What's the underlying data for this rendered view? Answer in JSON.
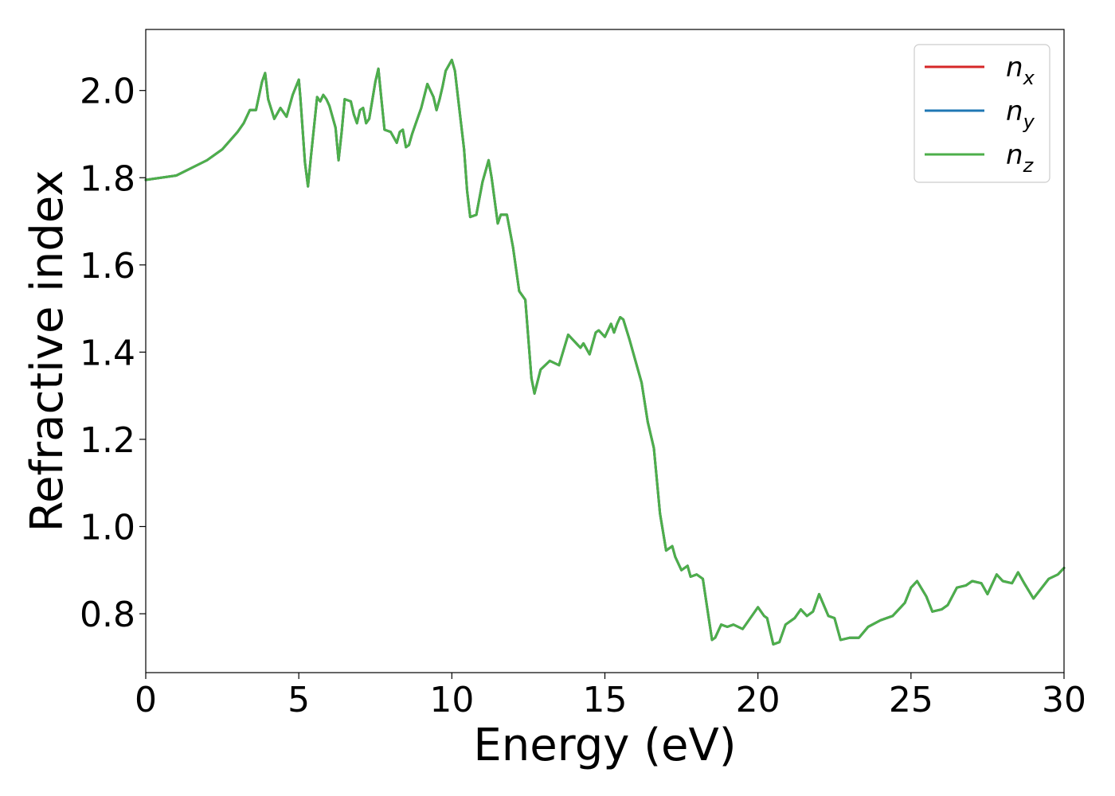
{
  "chart_data": {
    "type": "line",
    "title": "",
    "xlabel": "Energy (eV)",
    "ylabel": "Refractive index",
    "xlim": [
      0,
      30
    ],
    "ylim": [
      0.665,
      2.14
    ],
    "xticks": [
      {
        "value": 0,
        "label": "0"
      },
      {
        "value": 5,
        "label": "5"
      },
      {
        "value": 10,
        "label": "10"
      },
      {
        "value": 15,
        "label": "15"
      },
      {
        "value": 20,
        "label": "20"
      },
      {
        "value": 25,
        "label": "25"
      },
      {
        "value": 30,
        "label": "30"
      }
    ],
    "yticks": [
      {
        "value": 0.8,
        "label": "0.8"
      },
      {
        "value": 1.0,
        "label": "1.0"
      },
      {
        "value": 1.2,
        "label": "1.2"
      },
      {
        "value": 1.4,
        "label": "1.4"
      },
      {
        "value": 1.6,
        "label": "1.6"
      },
      {
        "value": 1.8,
        "label": "1.8"
      },
      {
        "value": 2.0,
        "label": "2.0"
      }
    ],
    "grid": false,
    "legend_position": "top-right",
    "x": [
      0,
      1,
      2,
      2.5,
      3,
      3.2,
      3.4,
      3.6,
      3.8,
      3.9,
      4.0,
      4.2,
      4.4,
      4.6,
      4.8,
      5.0,
      5.05,
      5.2,
      5.3,
      5.4,
      5.6,
      5.7,
      5.8,
      5.9,
      6.0,
      6.2,
      6.3,
      6.4,
      6.5,
      6.7,
      6.8,
      6.9,
      7.0,
      7.1,
      7.2,
      7.3,
      7.5,
      7.6,
      7.7,
      7.8,
      8.0,
      8.2,
      8.3,
      8.4,
      8.5,
      8.6,
      8.7,
      8.8,
      9.0,
      9.2,
      9.4,
      9.5,
      9.6,
      9.7,
      9.8,
      10.0,
      10.1,
      10.2,
      10.4,
      10.5,
      10.6,
      10.8,
      11.0,
      11.2,
      11.3,
      11.5,
      11.6,
      11.8,
      12.0,
      12.2,
      12.4,
      12.6,
      12.7,
      12.9,
      13.2,
      13.5,
      13.8,
      14.0,
      14.2,
      14.3,
      14.5,
      14.7,
      14.8,
      15.0,
      15.2,
      15.3,
      15.4,
      15.5,
      15.6,
      15.8,
      16.0,
      16.2,
      16.4,
      16.6,
      16.8,
      17.0,
      17.2,
      17.3,
      17.5,
      17.7,
      17.8,
      18.0,
      18.2,
      18.5,
      18.6,
      18.8,
      19.0,
      19.2,
      19.5,
      19.8,
      20.0,
      20.2,
      20.3,
      20.5,
      20.7,
      20.9,
      21.2,
      21.4,
      21.6,
      21.8,
      22.0,
      22.3,
      22.5,
      22.7,
      23.0,
      23.3,
      23.6,
      24.0,
      24.4,
      24.8,
      25.0,
      25.2,
      25.5,
      25.7,
      26.0,
      26.2,
      26.5,
      26.8,
      27.0,
      27.3,
      27.5,
      27.8,
      28.0,
      28.3,
      28.5,
      28.7,
      29.0,
      29.5,
      29.8,
      30.0
    ],
    "series": [
      {
        "name": "n_x",
        "label_main": "n",
        "label_sub": "x",
        "color": "#d62728",
        "values": [
          1.795,
          1.805,
          1.84,
          1.865,
          1.905,
          1.925,
          1.955,
          1.955,
          2.02,
          2.04,
          1.98,
          1.935,
          1.96,
          1.94,
          1.99,
          2.025,
          1.985,
          1.835,
          1.78,
          1.85,
          1.985,
          1.975,
          1.99,
          1.98,
          1.965,
          1.915,
          1.84,
          1.905,
          1.98,
          1.975,
          1.945,
          1.925,
          1.955,
          1.96,
          1.925,
          1.935,
          2.02,
          2.05,
          1.98,
          1.91,
          1.905,
          1.88,
          1.905,
          1.91,
          1.87,
          1.875,
          1.9,
          1.92,
          1.96,
          2.015,
          1.985,
          1.955,
          1.98,
          2.01,
          2.045,
          2.07,
          2.045,
          1.985,
          1.865,
          1.77,
          1.71,
          1.715,
          1.79,
          1.84,
          1.8,
          1.695,
          1.715,
          1.715,
          1.64,
          1.54,
          1.52,
          1.34,
          1.305,
          1.36,
          1.38,
          1.37,
          1.44,
          1.425,
          1.41,
          1.42,
          1.395,
          1.445,
          1.45,
          1.435,
          1.465,
          1.445,
          1.465,
          1.48,
          1.475,
          1.43,
          1.38,
          1.33,
          1.24,
          1.18,
          1.03,
          0.945,
          0.955,
          0.93,
          0.9,
          0.91,
          0.885,
          0.89,
          0.88,
          0.74,
          0.745,
          0.775,
          0.77,
          0.775,
          0.765,
          0.795,
          0.815,
          0.795,
          0.79,
          0.73,
          0.735,
          0.775,
          0.79,
          0.81,
          0.795,
          0.805,
          0.845,
          0.795,
          0.79,
          0.74,
          0.745,
          0.745,
          0.77,
          0.785,
          0.795,
          0.825,
          0.86,
          0.875,
          0.84,
          0.805,
          0.81,
          0.82,
          0.86,
          0.865,
          0.875,
          0.87,
          0.845,
          0.89,
          0.875,
          0.87,
          0.895,
          0.87,
          0.835,
          0.88,
          0.89,
          0.905
        ]
      },
      {
        "name": "n_y",
        "label_main": "n",
        "label_sub": "y",
        "color": "#1f77b4",
        "values": [
          1.795,
          1.805,
          1.84,
          1.865,
          1.905,
          1.925,
          1.955,
          1.955,
          2.02,
          2.04,
          1.98,
          1.935,
          1.96,
          1.94,
          1.99,
          2.025,
          1.985,
          1.835,
          1.78,
          1.85,
          1.985,
          1.975,
          1.99,
          1.98,
          1.965,
          1.915,
          1.84,
          1.905,
          1.98,
          1.975,
          1.945,
          1.925,
          1.955,
          1.96,
          1.925,
          1.935,
          2.02,
          2.05,
          1.98,
          1.91,
          1.905,
          1.88,
          1.905,
          1.91,
          1.87,
          1.875,
          1.9,
          1.92,
          1.96,
          2.015,
          1.985,
          1.955,
          1.98,
          2.01,
          2.045,
          2.07,
          2.045,
          1.985,
          1.865,
          1.77,
          1.71,
          1.715,
          1.79,
          1.84,
          1.8,
          1.695,
          1.715,
          1.715,
          1.64,
          1.54,
          1.52,
          1.34,
          1.305,
          1.36,
          1.38,
          1.37,
          1.44,
          1.425,
          1.41,
          1.42,
          1.395,
          1.445,
          1.45,
          1.435,
          1.465,
          1.445,
          1.465,
          1.48,
          1.475,
          1.43,
          1.38,
          1.33,
          1.24,
          1.18,
          1.03,
          0.945,
          0.955,
          0.93,
          0.9,
          0.91,
          0.885,
          0.89,
          0.88,
          0.74,
          0.745,
          0.775,
          0.77,
          0.775,
          0.765,
          0.795,
          0.815,
          0.795,
          0.79,
          0.73,
          0.735,
          0.775,
          0.79,
          0.81,
          0.795,
          0.805,
          0.845,
          0.795,
          0.79,
          0.74,
          0.745,
          0.745,
          0.77,
          0.785,
          0.795,
          0.825,
          0.86,
          0.875,
          0.84,
          0.805,
          0.81,
          0.82,
          0.86,
          0.865,
          0.875,
          0.87,
          0.845,
          0.89,
          0.875,
          0.87,
          0.895,
          0.87,
          0.835,
          0.88,
          0.89,
          0.905
        ]
      },
      {
        "name": "n_z",
        "label_main": "n",
        "label_sub": "z",
        "color": "#4daf4a",
        "values": [
          1.795,
          1.805,
          1.84,
          1.865,
          1.905,
          1.925,
          1.955,
          1.955,
          2.02,
          2.04,
          1.98,
          1.935,
          1.96,
          1.94,
          1.99,
          2.025,
          1.985,
          1.835,
          1.78,
          1.85,
          1.985,
          1.975,
          1.99,
          1.98,
          1.965,
          1.915,
          1.84,
          1.905,
          1.98,
          1.975,
          1.945,
          1.925,
          1.955,
          1.96,
          1.925,
          1.935,
          2.02,
          2.05,
          1.98,
          1.91,
          1.905,
          1.88,
          1.905,
          1.91,
          1.87,
          1.875,
          1.9,
          1.92,
          1.96,
          2.015,
          1.985,
          1.955,
          1.98,
          2.01,
          2.045,
          2.07,
          2.045,
          1.985,
          1.865,
          1.77,
          1.71,
          1.715,
          1.79,
          1.84,
          1.8,
          1.695,
          1.715,
          1.715,
          1.64,
          1.54,
          1.52,
          1.34,
          1.305,
          1.36,
          1.38,
          1.37,
          1.44,
          1.425,
          1.41,
          1.42,
          1.395,
          1.445,
          1.45,
          1.435,
          1.465,
          1.445,
          1.465,
          1.48,
          1.475,
          1.43,
          1.38,
          1.33,
          1.24,
          1.18,
          1.03,
          0.945,
          0.955,
          0.93,
          0.9,
          0.91,
          0.885,
          0.89,
          0.88,
          0.74,
          0.745,
          0.775,
          0.77,
          0.775,
          0.765,
          0.795,
          0.815,
          0.795,
          0.79,
          0.73,
          0.735,
          0.775,
          0.79,
          0.81,
          0.795,
          0.805,
          0.845,
          0.795,
          0.79,
          0.74,
          0.745,
          0.745,
          0.77,
          0.785,
          0.795,
          0.825,
          0.86,
          0.875,
          0.84,
          0.805,
          0.81,
          0.82,
          0.86,
          0.865,
          0.875,
          0.87,
          0.845,
          0.89,
          0.875,
          0.87,
          0.895,
          0.87,
          0.835,
          0.88,
          0.89,
          0.905
        ]
      }
    ]
  }
}
